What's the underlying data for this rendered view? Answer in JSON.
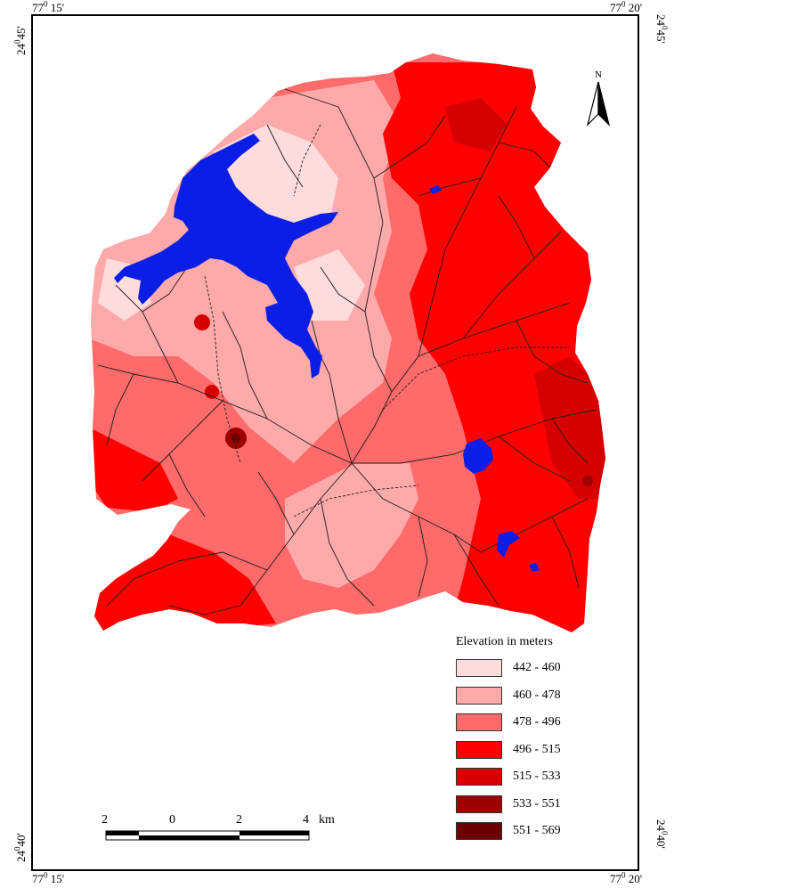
{
  "coordinates": {
    "top_left_lon": "77",
    "top_left_lon_deg": "0",
    "top_left_lon_min": " 15'",
    "top_right_lon": "77",
    "top_right_lon_deg": "0",
    "top_right_lon_min": " 20'",
    "bottom_left_lon": "77",
    "bottom_left_lon_deg": "0",
    "bottom_left_lon_min": " 15'",
    "bottom_right_lon": "77",
    "bottom_right_lon_deg": "0",
    "bottom_right_lon_min": " 20'",
    "left_top_lat": "24",
    "left_top_lat_deg": "0",
    "left_top_lat_min": "45'",
    "right_top_lat": "24",
    "right_top_lat_deg": "0",
    "right_top_lat_min": "45'",
    "left_bottom_lat": "24",
    "left_bottom_lat_deg": "0",
    "left_bottom_lat_min": "40'",
    "right_bottom_lat": "24",
    "right_bottom_lat_deg": "0",
    "right_bottom_lat_min": "40'"
  },
  "north_arrow": {
    "label": "N"
  },
  "legend": {
    "title": "Elevation in meters",
    "items": [
      {
        "label": "442 - 460",
        "color": "#ffdcdc"
      },
      {
        "label": "460 - 478",
        "color": "#ffaaaa"
      },
      {
        "label": "478 - 496",
        "color": "#ff6b6b"
      },
      {
        "label": "496 - 515",
        "color": "#ff0000"
      },
      {
        "label": "515 - 533",
        "color": "#d50000"
      },
      {
        "label": "533 - 551",
        "color": "#9e0000"
      },
      {
        "label": "551 - 569",
        "color": "#6a0000"
      }
    ]
  },
  "scale_bar": {
    "labels": [
      "2",
      "0",
      "2",
      "4"
    ],
    "unit": "km"
  },
  "colors": {
    "water": "#0a1ee6",
    "drainage": "#1a1a1a"
  }
}
